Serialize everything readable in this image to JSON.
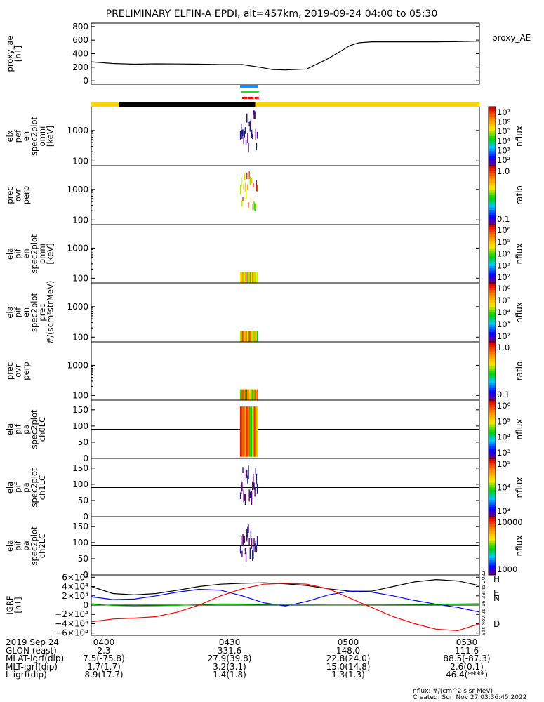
{
  "title": "PRELIMINARY ELFIN-A EPDI, alt=457km, 2019-09-24 04:00 to 05:30",
  "side_stamp": "Sat Nov 26 16:38:45 2022",
  "colors": {
    "proxy_line": "#000000",
    "igrf_h": "#000000",
    "igrf_n": "#0000ff",
    "igrf_e": "#00c000",
    "igrf_d": "#ff0000",
    "state_sunlit": "#ffd400",
    "state_eclipse": "#000000",
    "flag_blue": "#1e90ff",
    "flag_green": "#22dd22",
    "flag_red": "#ff0000"
  },
  "chart_data": [
    {
      "type": "line",
      "name": "proxy_ae",
      "ylabel": [
        "proxy_ae",
        "[nT]"
      ],
      "ylim": [
        -50,
        850
      ],
      "yticks": [
        "800",
        "600",
        "400",
        "200",
        "0"
      ],
      "legend": "proxy_AE",
      "series": [
        {
          "name": "proxy_AE",
          "x": [
            0,
            5,
            10,
            15,
            20,
            25,
            30,
            35,
            40,
            42,
            45,
            50,
            55,
            60,
            62,
            65,
            70,
            75,
            80,
            85,
            90
          ],
          "y": [
            280,
            255,
            245,
            250,
            248,
            245,
            240,
            240,
            190,
            165,
            160,
            175,
            330,
            520,
            560,
            575,
            575,
            575,
            575,
            578,
            585
          ]
        }
      ]
    },
    {
      "type": "heatmap",
      "name": "elx_pef_en_spec2plot_omni",
      "ylabel": [
        "elx",
        "pef",
        "en",
        "spec2plot",
        "omni",
        "[keV]"
      ],
      "yscale": "log",
      "yticks": [
        "1000",
        "100"
      ],
      "colorbar": {
        "label": "nflux",
        "ticks": [
          "10⁷",
          "10⁶",
          "10⁵",
          "10⁴",
          "10³",
          "10²"
        ]
      }
    },
    {
      "type": "heatmap",
      "name": "prec_ovr_perp",
      "ylabel": [
        "prec",
        "ovr",
        "perp"
      ],
      "yscale": "log",
      "yticks": [
        "1000",
        "100"
      ],
      "colorbar": {
        "label": "ratio",
        "ticks": [
          "1.0",
          "0.1"
        ]
      }
    },
    {
      "type": "heatmap",
      "name": "ela_pif_en_spec2plot_omni",
      "ylabel": [
        "ela",
        "pif",
        "en",
        "spec2plot",
        "omni",
        "[keV]"
      ],
      "yscale": "log",
      "yticks": [
        "1000",
        "100"
      ],
      "colorbar": {
        "label": "nflux",
        "ticks": [
          "10⁶",
          "10⁵",
          "10⁴",
          "10³",
          "10²"
        ]
      }
    },
    {
      "type": "heatmap",
      "name": "ela_pif_en_spec2plot_prec",
      "ylabel": [
        "ela",
        "pif",
        "en",
        "spec2plot",
        "prec",
        "#/(scm²strMeV)"
      ],
      "yscale": "log",
      "yticks": [
        "1000",
        "100"
      ],
      "colorbar": {
        "label": "nflux",
        "ticks": [
          "10⁶",
          "10⁵",
          "10⁴",
          "10³",
          "10²"
        ]
      }
    },
    {
      "type": "heatmap",
      "name": "prec_ovr_perp_2",
      "ylabel": [
        "prec",
        "ovr",
        "perp"
      ],
      "yscale": "log",
      "yticks": [
        "1000",
        "100"
      ],
      "colorbar": {
        "label": "ratio",
        "ticks": [
          "1.0",
          "0.1"
        ]
      }
    },
    {
      "type": "heatmap",
      "name": "ela_pif_pa_spec2plot_ch0LC",
      "ylabel": [
        "ela",
        "pif",
        "pa",
        "spec2plot",
        "ch0LC"
      ],
      "ylim": [
        0,
        180
      ],
      "yticks": [
        "150",
        "100",
        "50",
        "0"
      ],
      "colorbar": {
        "label": "nflux",
        "ticks": [
          "10⁶",
          "10⁵",
          "10⁴",
          "10³"
        ]
      }
    },
    {
      "type": "heatmap",
      "name": "ela_pif_pa_spec2plot_ch1LC",
      "ylabel": [
        "ela",
        "pif",
        "pa",
        "spec2plot",
        "ch1LC"
      ],
      "ylim": [
        0,
        180
      ],
      "yticks": [
        "150",
        "100",
        "50",
        "0"
      ],
      "colorbar": {
        "label": "nflux",
        "ticks": [
          "10⁵",
          "10⁴",
          "10³"
        ]
      }
    },
    {
      "type": "heatmap",
      "name": "ela_pif_pa_spec2plot_ch2LC",
      "ylabel": [
        "ela",
        "pif",
        "pa",
        "spec2plot",
        "ch2LC"
      ],
      "ylim": [
        0,
        180
      ],
      "yticks": [
        "150",
        "100",
        "50",
        "0"
      ],
      "colorbar": {
        "label": "nflux",
        "ticks": [
          "10000",
          "1000"
        ]
      }
    },
    {
      "type": "line",
      "name": "igrf",
      "ylabel": [
        "IGRF",
        "[nT]"
      ],
      "ylim": [
        -65000,
        65000
      ],
      "yticks": [
        "6×10⁴",
        "4×10⁴",
        "2×10⁴",
        "0",
        "−2×10⁴",
        "−4×10⁴",
        "−6×10⁴"
      ],
      "series": [
        {
          "name": "H",
          "x": [
            0,
            5,
            10,
            15,
            20,
            25,
            30,
            35,
            40,
            45,
            50,
            55,
            60,
            65,
            70,
            75,
            80,
            85,
            90
          ],
          "y": [
            40000,
            25000,
            22000,
            25000,
            32000,
            40000,
            45000,
            47000,
            48000,
            46000,
            42000,
            35000,
            30000,
            30000,
            40000,
            50000,
            55000,
            52000,
            42000
          ]
        },
        {
          "name": "N",
          "x": [
            0,
            5,
            10,
            15,
            20,
            25,
            30,
            35,
            40,
            45,
            50,
            55,
            60,
            65,
            70,
            75,
            80,
            85,
            90
          ],
          "y": [
            18000,
            12000,
            13000,
            20000,
            28000,
            34000,
            32000,
            20000,
            5000,
            -2000,
            8000,
            22000,
            30000,
            28000,
            20000,
            10000,
            2000,
            -5000,
            -15000
          ]
        },
        {
          "name": "E",
          "x": [
            0,
            5,
            10,
            15,
            20,
            25,
            30,
            35,
            40,
            45,
            50,
            55,
            60,
            65,
            70,
            75,
            80,
            85,
            90
          ],
          "y": [
            3000,
            -1000,
            -2000,
            -1500,
            -800,
            1000,
            2500,
            2200,
            1500,
            1000,
            800,
            500,
            500,
            800,
            1000,
            1500,
            2000,
            2500,
            3000
          ]
        },
        {
          "name": "D",
          "x": [
            0,
            5,
            10,
            15,
            20,
            25,
            30,
            35,
            40,
            45,
            50,
            55,
            60,
            65,
            70,
            75,
            80,
            85,
            90
          ],
          "y": [
            -36000,
            -30000,
            -28000,
            -25000,
            -15000,
            0,
            20000,
            35000,
            45000,
            47000,
            45000,
            35000,
            15000,
            -5000,
            -25000,
            -40000,
            -52000,
            -55000,
            -40000
          ]
        }
      ],
      "legend_labels": [
        "H",
        "N",
        "E",
        "D"
      ]
    }
  ],
  "footer": {
    "rows": [
      {
        "label": "2019 Sep 24",
        "cols": [
          "0400",
          "0430",
          "0500",
          "0530"
        ]
      },
      {
        "label": "GLON (east)",
        "cols": [
          "2.3",
          "331.6",
          "148.0",
          "111.6"
        ]
      },
      {
        "label": "MLAT-igrf(dip)",
        "cols": [
          "7.5(-75.8)",
          "27.9(39.8)",
          "22.8(24.0)",
          "88.5(-87.3)"
        ]
      },
      {
        "label": "MLT-igrf(dip)",
        "cols": [
          "1.7(1.7)",
          "3.2(3.1)",
          "15.0(14.8)",
          "2.6(0.1)"
        ]
      },
      {
        "label": "L-igrf(dip)",
        "cols": [
          "8.9(17.7)",
          "1.4(1.8)",
          "1.3(1.3)",
          "46.4(****)"
        ]
      }
    ],
    "units_note": "nflux: #/(cm^2 s sr MeV)",
    "created": "Created: Sun Nov 27 03:36:45 2022"
  }
}
